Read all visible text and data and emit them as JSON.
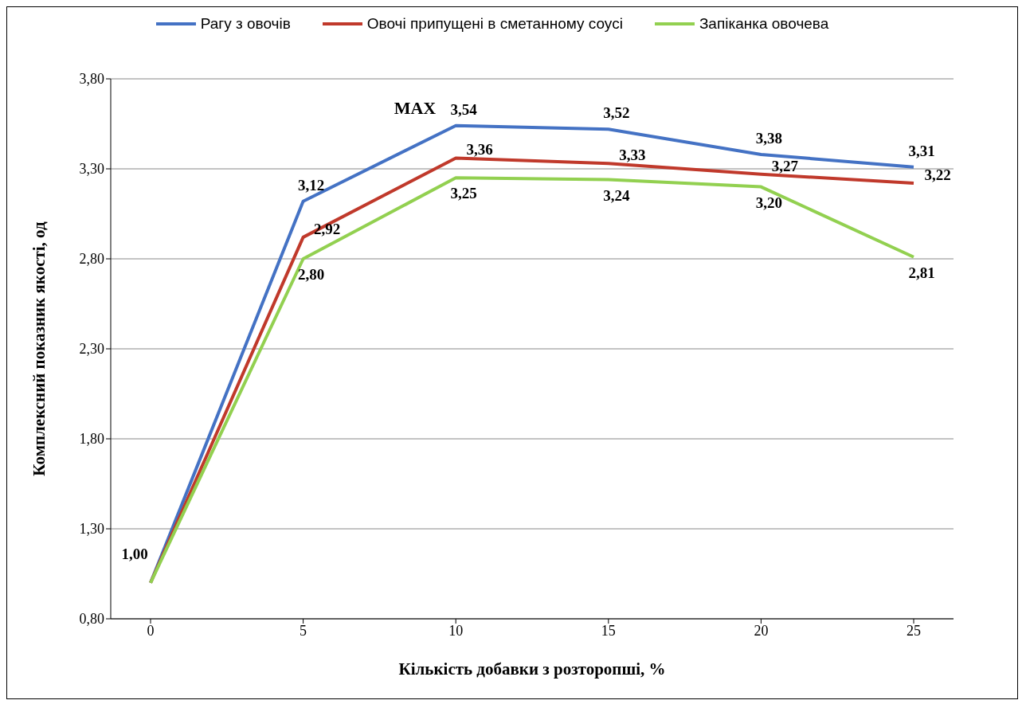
{
  "chart_data": {
    "type": "line",
    "xlabel": "Кількість добавки з розторопші, %",
    "ylabel": "Комплексний показник якості, од",
    "categories": [
      "0",
      "5",
      "10",
      "15",
      "20",
      "25"
    ],
    "series": [
      {
        "name": "Рагу з овочів",
        "color": "#4472c4",
        "values": [
          1.0,
          3.12,
          3.54,
          3.52,
          3.38,
          3.31
        ],
        "value_labels": [
          "1,00",
          "3,12",
          "3,54",
          "3,52",
          "3,38",
          "3,31"
        ]
      },
      {
        "name": "Овочі припущені в сметанному соусі",
        "color": "#c0392b",
        "values": [
          1.0,
          2.92,
          3.36,
          3.33,
          3.27,
          3.22
        ],
        "value_labels": [
          null,
          "2,92",
          "3,36",
          "3,33",
          "3,27",
          "3,22"
        ]
      },
      {
        "name": "Запіканка овочева",
        "color": "#92d050",
        "values": [
          1.0,
          2.8,
          3.25,
          3.24,
          3.2,
          2.81
        ],
        "value_labels": [
          null,
          "2,80",
          "3,25",
          "3,24",
          "3,20",
          "2,81"
        ]
      }
    ],
    "ylim": [
      0.8,
      3.8
    ],
    "yticks": [
      {
        "value": 0.8,
        "label": "0,80"
      },
      {
        "value": 1.3,
        "label": "1,30"
      },
      {
        "value": 1.8,
        "label": "1,80"
      },
      {
        "value": 2.3,
        "label": "2,30"
      },
      {
        "value": 2.8,
        "label": "2,80"
      },
      {
        "value": 3.3,
        "label": "3,30"
      },
      {
        "value": 3.8,
        "label": "3,80"
      }
    ],
    "grid": "y",
    "legend": "top",
    "marker": "none",
    "line_style": "solid",
    "annotations": [
      {
        "text": "MAX",
        "x": "10",
        "y": 3.54
      }
    ]
  }
}
